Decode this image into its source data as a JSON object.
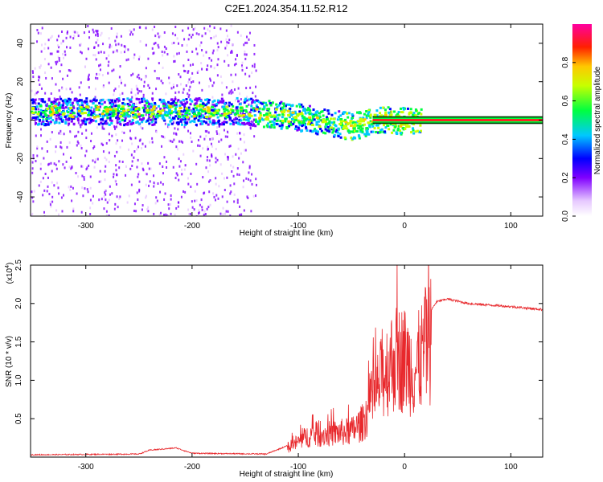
{
  "title": "C2E1.2024.354.11.52.R12",
  "chart_data": [
    {
      "type": "heatmap",
      "xlabel": "Height of straight line (km)",
      "ylabel": "Frequency (Hz)",
      "xlim": [
        -352,
        130
      ],
      "ylim": [
        -50,
        50
      ],
      "xticks": [
        -300,
        -200,
        -100,
        0,
        100
      ],
      "yticks": [
        -40,
        -20,
        0,
        20,
        40
      ],
      "colorbar": {
        "label": "Normalized spectral amplitude",
        "ticks": [
          0.0,
          0.2,
          0.4,
          0.6,
          0.8
        ],
        "range": [
          0,
          1
        ]
      },
      "features": {
        "noise_band_x": [
          -352,
          -140
        ],
        "spectral_track": [
          {
            "x": -350,
            "freq": 5
          },
          {
            "x": -250,
            "freq": 5
          },
          {
            "x": -150,
            "freq": 5
          },
          {
            "x": -100,
            "freq": 2
          },
          {
            "x": -50,
            "freq": -3
          },
          {
            "x": -25,
            "freq": 1
          },
          {
            "x": 0,
            "freq": 0
          },
          {
            "x": 130,
            "freq": 0
          }
        ],
        "constant_line_x_start": -30,
        "constant_line_freq": 0
      }
    },
    {
      "type": "line",
      "xlabel": "Height of straight line (km)",
      "ylabel": "SNR (10 * v/v)",
      "y_multiplier": "(x10",
      "y_exponent": "4",
      "xlim": [
        -352,
        130
      ],
      "ylim": [
        0,
        2.5
      ],
      "xticks": [
        -300,
        -200,
        -100,
        0,
        100
      ],
      "yticks": [
        0.5,
        1.0,
        1.5,
        2.0,
        2.5
      ],
      "series": [
        {
          "color": "#e8282c",
          "envelope": [
            {
              "x": -352,
              "y": 0.03
            },
            {
              "x": -250,
              "y": 0.04
            },
            {
              "x": -240,
              "y": 0.09
            },
            {
              "x": -215,
              "y": 0.12
            },
            {
              "x": -200,
              "y": 0.05
            },
            {
              "x": -130,
              "y": 0.04
            },
            {
              "x": -110,
              "y": 0.15
            },
            {
              "x": -90,
              "y": 0.35
            },
            {
              "x": -70,
              "y": 0.38
            },
            {
              "x": -50,
              "y": 0.42
            },
            {
              "x": -40,
              "y": 0.55
            },
            {
              "x": -30,
              "y": 0.9
            },
            {
              "x": -20,
              "y": 1.35
            },
            {
              "x": -10,
              "y": 1.6
            },
            {
              "x": 0,
              "y": 1.6
            },
            {
              "x": 10,
              "y": 1.4
            },
            {
              "x": 20,
              "y": 1.8
            },
            {
              "x": 30,
              "y": 2.02
            },
            {
              "x": 40,
              "y": 2.06
            },
            {
              "x": 60,
              "y": 2.0
            },
            {
              "x": 80,
              "y": 1.98
            },
            {
              "x": 100,
              "y": 1.96
            },
            {
              "x": 130,
              "y": 1.92
            }
          ]
        }
      ]
    }
  ]
}
